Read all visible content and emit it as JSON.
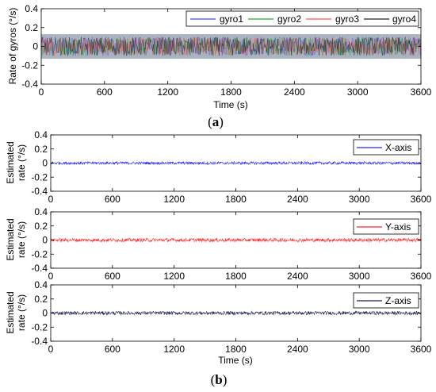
{
  "captions": {
    "a_pre": "(",
    "a": "a",
    "a_post": ")",
    "b_pre": "(",
    "b": "b",
    "b_post": ")"
  },
  "colors": {
    "gyro1": "#4a4aff",
    "gyro2": "#22aa22",
    "gyro3": "#ff5555",
    "gyro4": "#222222",
    "x": "#2020ff",
    "y": "#ff2020",
    "z": "#1a2244",
    "band": "#9aa6b6"
  },
  "chart_data": [
    {
      "type": "line",
      "ylabel": "Rate of gyros (°/s)",
      "xlabel": "Time (s)",
      "xlim": [
        0,
        3600
      ],
      "ylim": [
        -0.4,
        0.4
      ],
      "xticks": [
        "0",
        "600",
        "1200",
        "1800",
        "2400",
        "3000",
        "3600"
      ],
      "yticks": [
        "0.4",
        "0.2",
        "0",
        "-0.2",
        "-0.4"
      ],
      "legend_position": "top-right",
      "series": [
        {
          "name": "gyro1",
          "color": "#4a4aff",
          "mean": 0,
          "amplitude": 0.1
        },
        {
          "name": "gyro2",
          "color": "#22aa22",
          "mean": 0,
          "amplitude": 0.1
        },
        {
          "name": "gyro3",
          "color": "#ff5555",
          "mean": 0,
          "amplitude": 0.1
        },
        {
          "name": "gyro4",
          "color": "#222222",
          "mean": 0,
          "amplitude": 0.1
        }
      ],
      "grid": false
    },
    {
      "type": "line",
      "ylabel_line1": "Estimated",
      "ylabel_line2": "rate (°/s)",
      "xlabel": "",
      "xlim": [
        0,
        3600
      ],
      "ylim": [
        -0.4,
        0.4
      ],
      "xticks": [
        "0",
        "600",
        "1200",
        "1800",
        "2400",
        "3000",
        "3600"
      ],
      "yticks": [
        "0.4",
        "0.2",
        "0",
        "-0.2",
        "-0.4"
      ],
      "legend_position": "top-right",
      "series": [
        {
          "name": "X-axis",
          "color": "#2020ff",
          "mean": 0,
          "amplitude": 0.02
        }
      ],
      "grid": false
    },
    {
      "type": "line",
      "ylabel_line1": "Estimated",
      "ylabel_line2": "rate (°/s)",
      "xlabel": "",
      "xlim": [
        0,
        3600
      ],
      "ylim": [
        -0.4,
        0.4
      ],
      "xticks": [
        "0",
        "600",
        "1200",
        "1800",
        "2400",
        "3000",
        "3600"
      ],
      "yticks": [
        "0.4",
        "0.2",
        "0",
        "-0.2",
        "-0.4"
      ],
      "legend_position": "top-right",
      "series": [
        {
          "name": "Y-axis",
          "color": "#ff2020",
          "mean": 0,
          "amplitude": 0.025
        }
      ],
      "grid": false
    },
    {
      "type": "line",
      "ylabel_line1": "Estimated",
      "ylabel_line2": "rate (°/s)",
      "xlabel": "Time (s)",
      "xlim": [
        0,
        3600
      ],
      "ylim": [
        -0.4,
        0.4
      ],
      "xticks": [
        "0",
        "600",
        "1200",
        "1800",
        "2400",
        "3000",
        "3600"
      ],
      "yticks": [
        "0.4",
        "0.2",
        "0",
        "-0.2",
        "-0.4"
      ],
      "legend_position": "top-right",
      "series": [
        {
          "name": "Z-axis",
          "color": "#1a2244",
          "mean": 0,
          "amplitude": 0.025
        }
      ],
      "grid": false
    }
  ]
}
